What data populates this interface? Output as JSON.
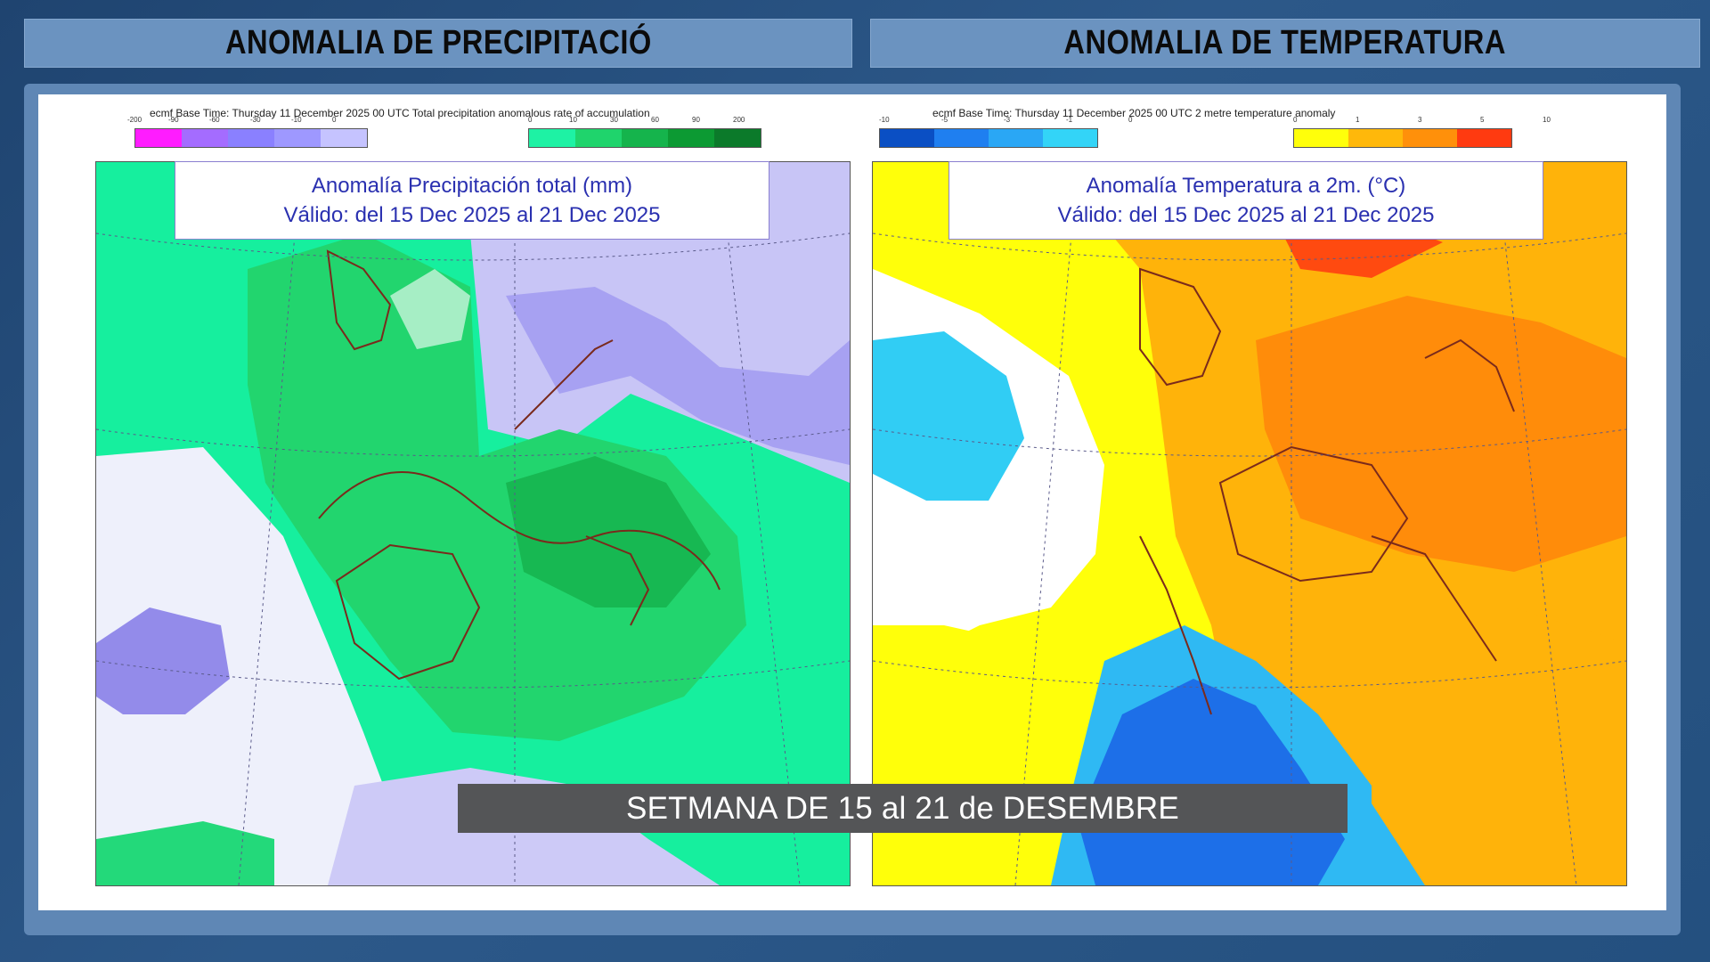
{
  "headers": {
    "left": "ANOMALIA DE PRECIPITACIÓ",
    "right": "ANOMALIA DE TEMPERATURA"
  },
  "precip_panel": {
    "source_line": "ecmf Base Time: Thursday 11 December 2025 00 UTC Total precipitation anomalous rate of accumulation",
    "scale_negative": [
      "-200",
      "-90",
      "-60",
      "-30",
      "-10",
      "0"
    ],
    "scale_positive": [
      "0",
      "10",
      "30",
      "60",
      "90",
      "200"
    ],
    "colors_negative": [
      "#ff1cff",
      "#a46cff",
      "#8a80ff",
      "#9e98ff",
      "#c5c3ff"
    ],
    "colors_positive": [
      "#1ef2a4",
      "#1fd46c",
      "#15b44c",
      "#0c9a33",
      "#0b7a2a"
    ],
    "title_line1": "Anomalía Precipitación total (mm)",
    "title_line2": "Válido: del 15 Dec 2025 al 21 Dec 2025"
  },
  "temp_panel": {
    "source_line": "ecmf Base Time: Thursday 11 December 2025 00 UTC 2 metre temperature anomaly",
    "scale_negative": [
      "-10",
      "-5",
      "-3",
      "-1",
      "0"
    ],
    "scale_positive": [
      "0",
      "1",
      "3",
      "5",
      "10"
    ],
    "colors_negative": [
      "#0a4fc4",
      "#1f7ff0",
      "#2aa7f5",
      "#33d4f7"
    ],
    "colors_positive": [
      "#ffff0a",
      "#ffb80a",
      "#ff900a",
      "#ff3a10"
    ],
    "title_line1": "Anomalía Temperatura a 2m. (°C)",
    "title_line2": "Válido: del 15 Dec 2025 al 21 Dec 2025"
  },
  "week_label": "SETMANA DE 15 al 21 de DESEMBRE"
}
